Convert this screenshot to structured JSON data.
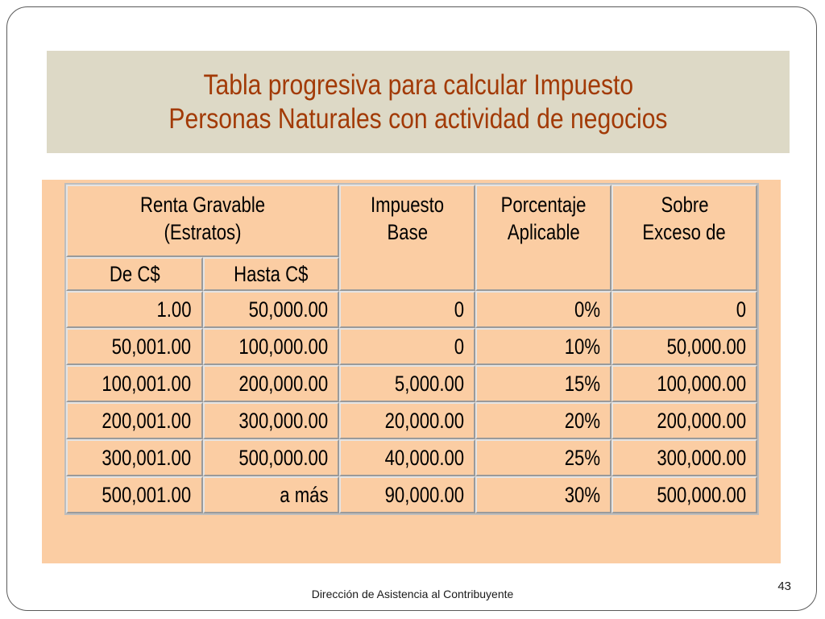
{
  "title": {
    "line1": "Tabla progresiva para calcular Impuesto",
    "line2": "Personas Naturales con actividad de negocios"
  },
  "table": {
    "headers": {
      "renta_gravable_1": "Renta Gravable",
      "renta_gravable_2": "(Estratos)",
      "de": "De C$",
      "hasta": "Hasta C$",
      "impuesto_1": "Impuesto",
      "impuesto_2": "Base",
      "porcentaje_1": "Porcentaje",
      "porcentaje_2": "Aplicable",
      "sobre_1": "Sobre",
      "sobre_2": "Exceso de"
    },
    "rows": [
      [
        "1.00",
        "50,000.00",
        "0",
        "0%",
        "0"
      ],
      [
        "50,001.00",
        "100,000.00",
        "0",
        "10%",
        "50,000.00"
      ],
      [
        "100,001.00",
        "200,000.00",
        "5,000.00",
        "15%",
        "100,000.00"
      ],
      [
        "200,001.00",
        "300,000.00",
        "20,000.00",
        "20%",
        "200,000.00"
      ],
      [
        "300,001.00",
        "500,000.00",
        "40,000.00",
        "25%",
        "300,000.00"
      ],
      [
        "500,001.00",
        "a más",
        "90,000.00",
        "30%",
        "500,000.00"
      ]
    ]
  },
  "footer": "Dirección de Asistencia al Contribuyente",
  "page_number": "43",
  "colors": {
    "title_band": "#ddd9c6",
    "title_text": "#a23a06",
    "table_background": "#fbcda3"
  }
}
